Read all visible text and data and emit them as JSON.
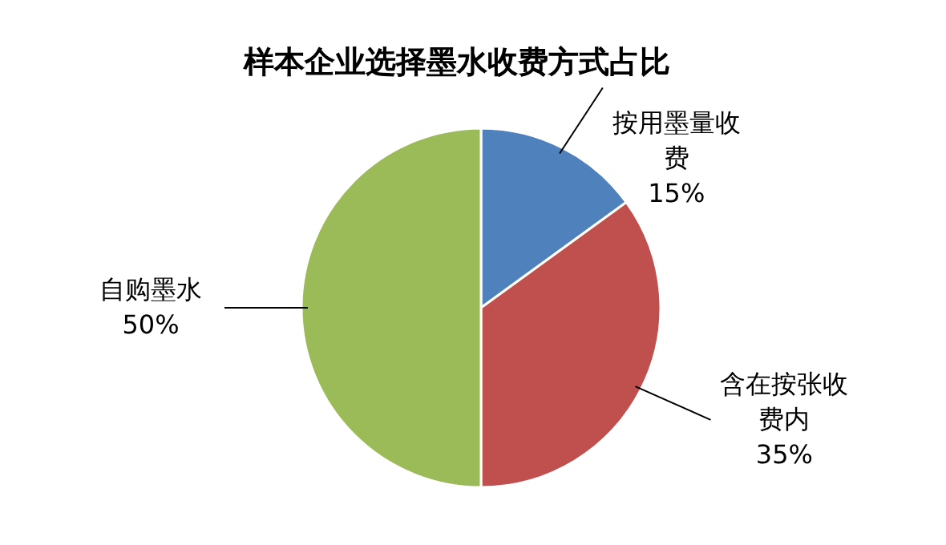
{
  "chart_data": {
    "type": "pie",
    "title": "样本企业选择墨水收费方式占比",
    "categories": [
      "按用墨量收费",
      "含在按张收费内",
      "自购墨水"
    ],
    "values": [
      15,
      35,
      50
    ],
    "colors": [
      "#4f81bd",
      "#c0504d",
      "#9bbb59"
    ],
    "value_labels": [
      "15%",
      "35%",
      "50%"
    ]
  }
}
